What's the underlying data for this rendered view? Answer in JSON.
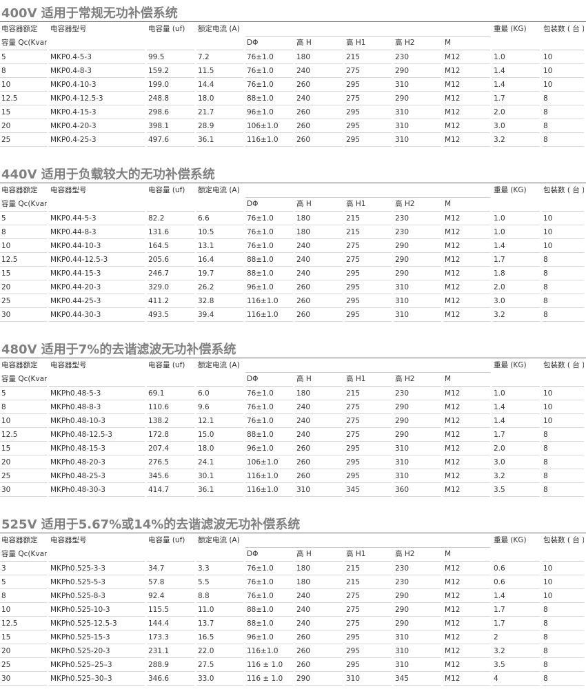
{
  "sections": [
    {
      "title": "400V  适用于常规无功补偿系统",
      "header1": [
        "电容器额定",
        "电容器型号",
        "电容量 (uf)",
        "额定电流 (A)",
        "重最 (KG)",
        "包装数 ( 台 )"
      ],
      "header2": [
        "容量 Qc(Kvar)",
        "DΦ",
        "高 H",
        "高 H1",
        "高 H2",
        "M"
      ],
      "rows": [
        [
          "5",
          "MKP0.4-5-3",
          "99.5",
          "7.2",
          "76±1.0",
          "180",
          "215",
          "230",
          "M12",
          "1.0",
          "10"
        ],
        [
          "8",
          "MKP0.4-8-3",
          "159.2",
          "11.5",
          "76±1.0",
          "240",
          "275",
          "290",
          "M12",
          "1.4",
          "10"
        ],
        [
          "10",
          "MKP0.4-10-3",
          "199.0",
          "14.4",
          "76±1.0",
          "260",
          "295",
          "310",
          "M12",
          "1.4",
          "10"
        ],
        [
          "12.5",
          "MKP0.4-12.5-3",
          "248.8",
          "18.0",
          "88±1.0",
          "240",
          "275",
          "290",
          "M12",
          "1.7",
          "8"
        ],
        [
          "15",
          "MKP0.4-15-3",
          "298.6",
          "21.7",
          "96±1.0",
          "260",
          "295",
          "310",
          "M12",
          "2.0",
          "8"
        ],
        [
          "20",
          "MKP0.4-20-3",
          "398.1",
          "28.9",
          "106±1.0",
          "260",
          "295",
          "310",
          "M12",
          "3.0",
          "8"
        ],
        [
          "25",
          "MKP0.4-25-3",
          "497.6",
          "36.1",
          "116±1.0",
          "260",
          "295",
          "310",
          "M12",
          "3.2",
          "8"
        ]
      ]
    },
    {
      "title": "440V  适用于负载较大的无功补偿系统",
      "header1": [
        "电容器额定",
        "电容器型号",
        "电容量 (uf)",
        "额定电流 (A)",
        "重最 (KG)",
        "包装数 ( 台 )"
      ],
      "header2": [
        "容量 Qc(Kvar)",
        "DΦ",
        "高 H",
        "高 H1",
        "高 H2",
        "M"
      ],
      "rows": [
        [
          "5",
          "MKP0.44-5-3",
          "82.2",
          "6.6",
          "76±1.0",
          "180",
          "215",
          "230",
          "M12",
          "1.0",
          "10"
        ],
        [
          "8",
          "MKP0.44-8-3",
          "131.6",
          "10.5",
          "76±1.0",
          "180",
          "215",
          "230",
          "M12",
          "1.0",
          "10"
        ],
        [
          "10",
          "MKP0.44-10-3",
          "164.5",
          "13.1",
          "76±1.0",
          "240",
          "275",
          "290",
          "M12",
          "1.4",
          "10"
        ],
        [
          "12.5",
          "MKP0.44-12.5-3",
          "205.6",
          "16.4",
          "88±1.0",
          "240",
          "275",
          "290",
          "M12",
          "1.7",
          "8"
        ],
        [
          "15",
          "MKP0.44-15-3",
          "246.7",
          "19.7",
          "88±1.0",
          "240",
          "295",
          "290",
          "M12",
          "1.8",
          "8"
        ],
        [
          "20",
          "MKP0.44-20-3",
          "329.0",
          "26.2",
          "96±1.0",
          "260",
          "295",
          "310",
          "M12",
          "2.0",
          "8"
        ],
        [
          "25",
          "MKP0.44-25-3",
          "411.2",
          "32.8",
          "116±1.0",
          "260",
          "295",
          "310",
          "M12",
          "3.0",
          "8"
        ],
        [
          "30",
          "MKP0.44-30-3",
          "493.5",
          "39.4",
          "116±1.0",
          "260",
          "295",
          "310",
          "M12",
          "3.2",
          "8"
        ]
      ]
    },
    {
      "title": "480V  适用于7%的去谐滤波无功补偿系统",
      "header1": [
        "电容器额定",
        "电容器型号",
        "电容量 (uf)",
        "额定电流 (A)",
        "重最 (KG)",
        "包装数 ( 台 )"
      ],
      "header2": [
        "容量 Qc(Kvar)",
        "DΦ",
        "高 H",
        "高 H1",
        "高 H2",
        "M"
      ],
      "rows": [
        [
          "5",
          "MKPh0.48-5-3",
          "69.1",
          "6.0",
          "76±1.0",
          "180",
          "215",
          "230",
          "M12",
          "1.0",
          "10"
        ],
        [
          "8",
          "MKPh0.48-8-3",
          "110.6",
          "9.6",
          "76±1.0",
          "240",
          "275",
          "290",
          "M12",
          "1.4",
          "10"
        ],
        [
          "10",
          "MKPh0.48-10-3",
          "138.2",
          "12.1",
          "76±1.0",
          "240",
          "275",
          "290",
          "M12",
          "1.4",
          "10"
        ],
        [
          "12.5",
          "MKPh0.48-12.5-3",
          "172.8",
          "15.0",
          "88±1.0",
          "240",
          "275",
          "290",
          "M12",
          "1.7",
          "8"
        ],
        [
          "15",
          "MKPh0.48-15-3",
          "207.4",
          "18.0",
          "96±1.0",
          "260",
          "295",
          "310",
          "M12",
          "2.0",
          "8"
        ],
        [
          "20",
          "MKPh0.48-20-3",
          "276.5",
          "24.1",
          "106±1.0",
          "260",
          "295",
          "310",
          "M12",
          "3.0",
          "8"
        ],
        [
          "25",
          "MKPh0.48-25-3",
          "345.6",
          "30.1",
          "116±1.0",
          "260",
          "295",
          "310",
          "M12",
          "3.2",
          "8"
        ],
        [
          "30",
          "MKPh0.48-30-3",
          "414.7",
          "36.1",
          "116±1.0",
          "310",
          "345",
          "360",
          "M12",
          "3.5",
          "8"
        ]
      ]
    },
    {
      "title": "525V  适用于5.67%或14%的去谐滤波无功补偿系统",
      "header1": [
        "电容器额定",
        "电容器型号",
        "电容量 (uf)",
        "额定电流 (A)",
        "重最 (KG)",
        "包装数 ( 台 )"
      ],
      "header2": [
        "容量 Qc(Kvar)",
        "DΦ",
        "高 H",
        "高 H1",
        "高 H2",
        "M"
      ],
      "rows": [
        [
          "3",
          "MKPh0.525-3-3",
          "34.7",
          "3.3",
          "76±1.0",
          "180",
          "215",
          "230",
          "M12",
          "0.6",
          "10"
        ],
        [
          "5",
          "MKPh0.525-5-3",
          "57.8",
          "5.5",
          "76±1.0",
          "180",
          "215",
          "230",
          "M12",
          "0.6",
          "10"
        ],
        [
          "8",
          "MKPh0.525-8-3",
          "92.4",
          "8.8",
          "76±1.0",
          "240",
          "275",
          "290",
          "M12",
          "1.4",
          "10"
        ],
        [
          "10",
          "MKPh0.525-10-3",
          "115.5",
          "11.0",
          "88±1.0",
          "240",
          "275",
          "290",
          "M12",
          "1.7",
          "8"
        ],
        [
          "12.5",
          "MKPh0.525-12.5-3",
          "144.4",
          "13.7",
          "88±1.0",
          "240",
          "275",
          "290",
          "M12",
          "1.7",
          "8"
        ],
        [
          "15",
          "MKPh0.525-15-3",
          "173.3",
          "16.5",
          "96±1.0",
          "260",
          "295",
          "310",
          "M12",
          "2",
          "8"
        ],
        [
          "20",
          "MKPh0.525-20-3",
          "231.1",
          "22.0",
          "116±1.0",
          "260",
          "295",
          "310",
          "M12",
          "3.2",
          "8"
        ],
        [
          "25",
          "MKPh0.525–25–3",
          "288.9",
          "27.5",
          "116 ± 1.0",
          "260",
          "295",
          "310",
          "M12",
          "3.5",
          "8"
        ],
        [
          "30",
          "MKPh0.525–30–3",
          "346.6",
          "33.0",
          "116 ± 1.0",
          "290",
          "310",
          "345",
          "M12",
          "4",
          "8"
        ]
      ]
    }
  ]
}
